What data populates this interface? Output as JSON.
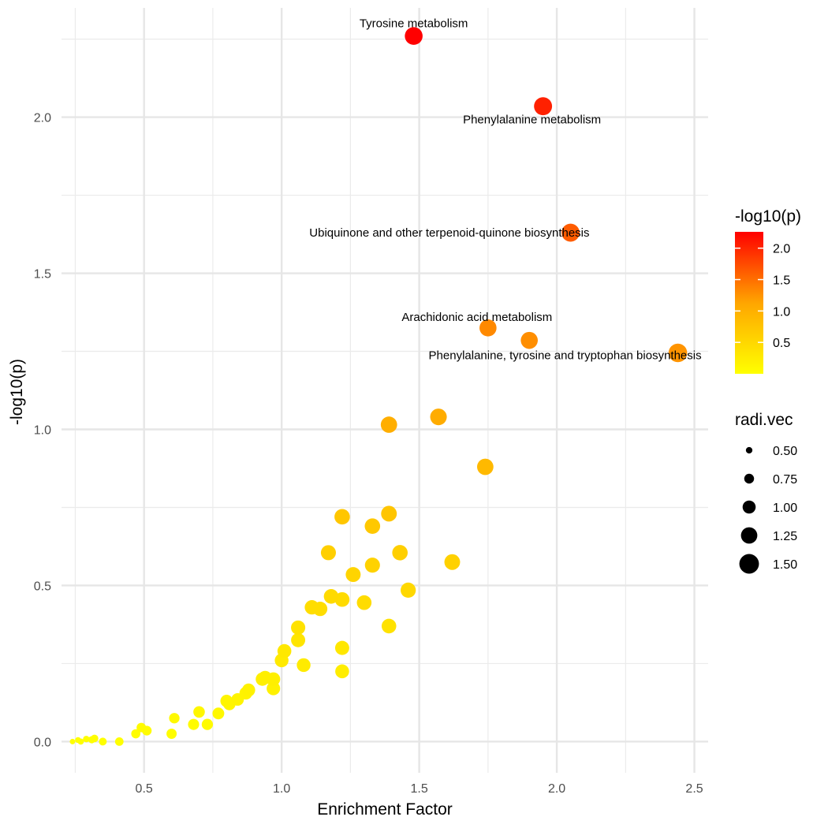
{
  "chart_data": {
    "type": "scatter",
    "xlabel": "Enrichment Factor",
    "ylabel": "-log10(p)",
    "xlim": [
      0.2,
      2.55
    ],
    "ylim": [
      -0.1,
      2.35
    ],
    "xticks": [
      0.5,
      1.0,
      1.5,
      2.0,
      2.5
    ],
    "xtick_labels": [
      "0.5",
      "1.0",
      "1.5",
      "2.0",
      "2.5"
    ],
    "yticks": [
      0.0,
      0.5,
      1.0,
      1.5,
      2.0
    ],
    "ytick_labels": [
      "0.0",
      "0.5",
      "1.0",
      "1.5",
      "2.0"
    ],
    "grid": true,
    "color": {
      "variable": "-log10(p)",
      "gradient": [
        "#FFFF00",
        "#FFA500",
        "#FF0000"
      ],
      "range": [
        0.0,
        2.26
      ],
      "legend_ticks": [
        0.5,
        1.0,
        1.5,
        2.0
      ],
      "legend_tick_labels": [
        "0.5",
        "1.0",
        "1.5",
        "2.0"
      ]
    },
    "size": {
      "variable": "radi.vec",
      "legend_values": [
        0.5,
        0.75,
        1.0,
        1.25,
        1.5
      ],
      "legend_labels": [
        "0.50",
        "0.75",
        "1.00",
        "1.25",
        "1.50"
      ]
    },
    "points": [
      {
        "x": 0.24,
        "y": 0.0,
        "r": 0.42
      },
      {
        "x": 0.26,
        "y": 0.005,
        "r": 0.45
      },
      {
        "x": 0.27,
        "y": 0.0,
        "r": 0.47
      },
      {
        "x": 0.29,
        "y": 0.008,
        "r": 0.5
      },
      {
        "x": 0.31,
        "y": 0.006,
        "r": 0.55
      },
      {
        "x": 0.32,
        "y": 0.01,
        "r": 0.58
      },
      {
        "x": 0.35,
        "y": 0.0,
        "r": 0.6
      },
      {
        "x": 0.41,
        "y": 0.0,
        "r": 0.65
      },
      {
        "x": 0.47,
        "y": 0.025,
        "r": 0.7
      },
      {
        "x": 0.49,
        "y": 0.045,
        "r": 0.72
      },
      {
        "x": 0.51,
        "y": 0.035,
        "r": 0.74
      },
      {
        "x": 0.6,
        "y": 0.025,
        "r": 0.78
      },
      {
        "x": 0.61,
        "y": 0.075,
        "r": 0.8
      },
      {
        "x": 0.68,
        "y": 0.055,
        "r": 0.85
      },
      {
        "x": 0.7,
        "y": 0.095,
        "r": 0.88
      },
      {
        "x": 0.73,
        "y": 0.055,
        "r": 0.86
      },
      {
        "x": 0.77,
        "y": 0.09,
        "r": 0.9
      },
      {
        "x": 0.8,
        "y": 0.13,
        "r": 0.95
      },
      {
        "x": 0.81,
        "y": 0.12,
        "r": 0.94
      },
      {
        "x": 0.84,
        "y": 0.135,
        "r": 0.96
      },
      {
        "x": 0.87,
        "y": 0.155,
        "r": 0.98
      },
      {
        "x": 0.88,
        "y": 0.165,
        "r": 1.0
      },
      {
        "x": 0.93,
        "y": 0.2,
        "r": 1.02
      },
      {
        "x": 0.94,
        "y": 0.205,
        "r": 1.03
      },
      {
        "x": 0.97,
        "y": 0.2,
        "r": 1.04
      },
      {
        "x": 0.97,
        "y": 0.17,
        "r": 1.03
      },
      {
        "x": 1.0,
        "y": 0.26,
        "r": 1.05
      },
      {
        "x": 1.01,
        "y": 0.29,
        "r": 1.06
      },
      {
        "x": 1.06,
        "y": 0.325,
        "r": 1.08
      },
      {
        "x": 1.06,
        "y": 0.365,
        "r": 1.09
      },
      {
        "x": 1.08,
        "y": 0.245,
        "r": 1.05
      },
      {
        "x": 1.11,
        "y": 0.43,
        "r": 1.1
      },
      {
        "x": 1.14,
        "y": 0.425,
        "r": 1.1
      },
      {
        "x": 1.17,
        "y": 0.605,
        "r": 1.15
      },
      {
        "x": 1.18,
        "y": 0.465,
        "r": 1.12
      },
      {
        "x": 1.22,
        "y": 0.455,
        "r": 1.12
      },
      {
        "x": 1.22,
        "y": 0.72,
        "r": 1.18
      },
      {
        "x": 1.22,
        "y": 0.3,
        "r": 1.08
      },
      {
        "x": 1.22,
        "y": 0.225,
        "r": 1.06
      },
      {
        "x": 1.26,
        "y": 0.535,
        "r": 1.14
      },
      {
        "x": 1.3,
        "y": 0.445,
        "r": 1.12
      },
      {
        "x": 1.33,
        "y": 0.69,
        "r": 1.18
      },
      {
        "x": 1.33,
        "y": 0.565,
        "r": 1.15
      },
      {
        "x": 1.39,
        "y": 0.73,
        "r": 1.2
      },
      {
        "x": 1.39,
        "y": 0.37,
        "r": 1.12
      },
      {
        "x": 1.39,
        "y": 1.015,
        "r": 1.25
      },
      {
        "x": 1.43,
        "y": 0.605,
        "r": 1.18
      },
      {
        "x": 1.46,
        "y": 0.485,
        "r": 1.16
      },
      {
        "x": 1.48,
        "y": 2.26,
        "r": 1.36
      },
      {
        "x": 1.57,
        "y": 1.04,
        "r": 1.27
      },
      {
        "x": 1.62,
        "y": 0.575,
        "r": 1.2
      },
      {
        "x": 1.74,
        "y": 0.88,
        "r": 1.25
      },
      {
        "x": 1.75,
        "y": 1.325,
        "r": 1.3
      },
      {
        "x": 1.9,
        "y": 1.285,
        "r": 1.3
      },
      {
        "x": 1.95,
        "y": 2.035,
        "r": 1.38
      },
      {
        "x": 2.05,
        "y": 1.63,
        "r": 1.38
      },
      {
        "x": 2.44,
        "y": 1.245,
        "r": 1.42
      }
    ],
    "labels": [
      {
        "text": "Tyrosine metabolism",
        "x": 1.48,
        "y": 2.26,
        "pos": "above"
      },
      {
        "text": "Phenylalanine metabolism",
        "x": 1.95,
        "y": 2.035,
        "pos": "below"
      },
      {
        "text": "Ubiquinone and other terpenoid-quinone biosynthesis",
        "x": 2.05,
        "y": 1.63,
        "pos": "left"
      },
      {
        "text": "Arachidonic acid metabolism",
        "x": 1.75,
        "y": 1.325,
        "pos": "above-left"
      },
      {
        "text": "Phenylalanine, tyrosine and tryptophan biosynthesis",
        "x": 2.44,
        "y": 1.245,
        "pos": "below-left"
      }
    ]
  }
}
